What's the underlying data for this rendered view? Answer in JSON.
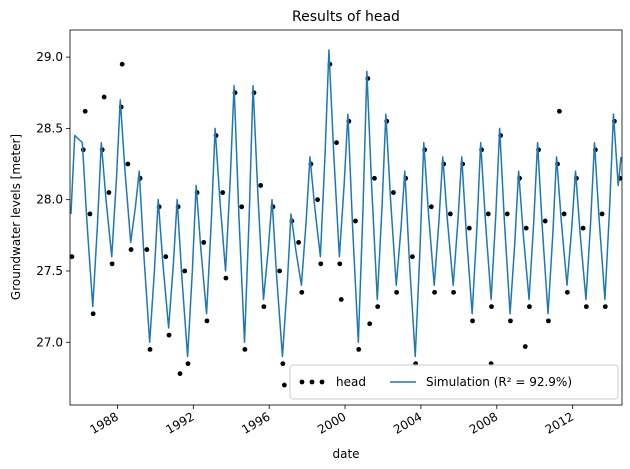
{
  "chart_data": {
    "type": "line",
    "title": "Results of head",
    "xlabel": "date",
    "ylabel": "Groundwater levels [meter]",
    "xlim": [
      1985.5,
      2014.6
    ],
    "xticks": [
      1988,
      1992,
      1996,
      2000,
      2004,
      2008,
      2012
    ],
    "ylim": [
      26.56,
      29.19
    ],
    "yticks": [
      {
        "value": 27,
        "label": "27.0"
      },
      27.5,
      {
        "value": 28,
        "label": "28.0"
      },
      28.5,
      {
        "value": 29,
        "label": "29.0"
      }
    ],
    "legend": "lower right",
    "series": [
      {
        "name": "head",
        "type": "scatter",
        "color": "#000000",
        "x": [
          1985.6,
          1986.2,
          1986.3,
          1986.55,
          1986.72,
          1987.2,
          1987.3,
          1987.55,
          1987.72,
          1988.2,
          1988.25,
          1988.55,
          1988.72,
          1989.2,
          1989.55,
          1989.72,
          1990.2,
          1990.55,
          1990.72,
          1991.2,
          1991.3,
          1991.55,
          1991.72,
          1992.2,
          1992.55,
          1992.72,
          1993.2,
          1993.55,
          1993.72,
          1994.2,
          1994.55,
          1994.72,
          1995.2,
          1995.55,
          1995.72,
          1996.2,
          1996.55,
          1996.72,
          1996.8,
          1997.2,
          1997.55,
          1997.72,
          1998.2,
          1998.55,
          1998.72,
          1999.2,
          1999.55,
          1999.72,
          1999.8,
          2000.2,
          2000.55,
          2000.72,
          2001.2,
          2001.3,
          2001.55,
          2001.72,
          2002.2,
          2002.55,
          2002.72,
          2003.2,
          2003.55,
          2003.72,
          2004.2,
          2004.55,
          2004.72,
          2005.2,
          2005.55,
          2005.72,
          2006.2,
          2006.55,
          2006.72,
          2007.2,
          2007.55,
          2007.7,
          2007.72,
          2008.2,
          2008.55,
          2008.72,
          2009.2,
          2009.5,
          2009.55,
          2009.72,
          2010.2,
          2010.55,
          2010.72,
          2011.2,
          2011.3,
          2011.55,
          2011.72,
          2012.2,
          2012.55,
          2012.72,
          2013.2,
          2013.55,
          2013.72,
          2014.2,
          2014.5
        ],
        "values": [
          27.6,
          28.35,
          28.62,
          27.9,
          27.2,
          28.35,
          28.72,
          28.05,
          27.55,
          28.65,
          28.95,
          28.25,
          27.65,
          28.15,
          27.65,
          26.95,
          27.95,
          27.6,
          27.05,
          27.95,
          26.78,
          27.5,
          26.85,
          28.05,
          27.7,
          27.15,
          28.45,
          28.05,
          27.45,
          28.75,
          27.95,
          26.95,
          28.75,
          28.1,
          27.25,
          27.95,
          27.5,
          26.85,
          26.7,
          27.85,
          27.7,
          27.35,
          28.25,
          28.0,
          27.55,
          28.95,
          28.4,
          27.55,
          27.3,
          28.55,
          27.85,
          26.95,
          28.85,
          27.13,
          28.15,
          27.25,
          28.55,
          28.05,
          27.35,
          28.15,
          27.6,
          26.85,
          28.35,
          27.95,
          27.35,
          28.25,
          27.9,
          27.35,
          28.25,
          27.8,
          27.15,
          28.35,
          27.9,
          26.85,
          27.25,
          28.45,
          27.9,
          27.15,
          28.15,
          26.97,
          27.8,
          27.25,
          28.35,
          27.85,
          27.15,
          28.25,
          28.62,
          27.9,
          27.35,
          28.15,
          27.8,
          27.25,
          28.35,
          27.9,
          27.25,
          28.55,
          28.15
        ]
      },
      {
        "name": "Simulation (R² = 92.9%)",
        "type": "line",
        "color": "#1f77b4",
        "x": [
          1985.55,
          1985.75,
          1986.15,
          1986.4,
          1986.7,
          1986.95,
          1987.15,
          1987.4,
          1987.7,
          1987.95,
          1988.15,
          1988.4,
          1988.7,
          1988.95,
          1989.15,
          1989.4,
          1989.7,
          1989.95,
          1990.15,
          1990.4,
          1990.7,
          1990.95,
          1991.15,
          1991.4,
          1991.7,
          1991.95,
          1992.15,
          1992.4,
          1992.7,
          1992.95,
          1993.15,
          1993.4,
          1993.7,
          1993.95,
          1994.15,
          1994.4,
          1994.7,
          1994.95,
          1995.15,
          1995.4,
          1995.7,
          1995.95,
          1996.15,
          1996.4,
          1996.7,
          1996.95,
          1997.15,
          1997.4,
          1997.7,
          1997.95,
          1998.15,
          1998.4,
          1998.7,
          1998.95,
          1999.15,
          1999.4,
          1999.7,
          1999.95,
          2000.15,
          2000.4,
          2000.7,
          2000.95,
          2001.15,
          2001.4,
          2001.7,
          2001.95,
          2002.15,
          2002.4,
          2002.7,
          2002.95,
          2003.15,
          2003.4,
          2003.7,
          2003.95,
          2004.15,
          2004.4,
          2004.7,
          2004.95,
          2005.15,
          2005.4,
          2005.7,
          2005.95,
          2006.15,
          2006.4,
          2006.7,
          2006.95,
          2007.15,
          2007.4,
          2007.7,
          2007.95,
          2008.15,
          2008.4,
          2008.7,
          2008.95,
          2009.15,
          2009.4,
          2009.7,
          2009.95,
          2010.15,
          2010.4,
          2010.7,
          2010.95,
          2011.15,
          2011.4,
          2011.7,
          2011.95,
          2012.15,
          2012.4,
          2012.7,
          2012.95,
          2013.15,
          2013.4,
          2013.7,
          2013.95,
          2014.15,
          2014.4,
          2014.55
        ],
        "values": [
          27.9,
          28.45,
          28.4,
          27.83,
          27.25,
          27.83,
          28.4,
          28.0,
          27.6,
          28.15,
          28.7,
          28.2,
          27.7,
          27.95,
          28.2,
          27.6,
          27.0,
          27.5,
          28.0,
          27.55,
          27.1,
          27.55,
          28.0,
          27.45,
          26.9,
          27.5,
          28.1,
          27.65,
          27.2,
          27.85,
          28.5,
          28.0,
          27.5,
          28.15,
          28.8,
          27.9,
          27.0,
          27.9,
          28.8,
          28.05,
          27.3,
          27.65,
          28.0,
          27.45,
          26.9,
          27.4,
          27.9,
          27.65,
          27.4,
          27.85,
          28.3,
          27.95,
          27.6,
          28.33,
          29.05,
          28.33,
          27.6,
          28.1,
          28.6,
          27.8,
          27.0,
          27.95,
          28.9,
          28.1,
          27.3,
          27.95,
          28.6,
          28.0,
          27.4,
          27.8,
          28.2,
          27.55,
          26.9,
          27.65,
          28.4,
          27.9,
          27.4,
          27.85,
          28.3,
          27.85,
          27.4,
          27.85,
          28.3,
          27.75,
          27.2,
          27.8,
          28.4,
          27.85,
          27.3,
          27.9,
          28.5,
          27.85,
          27.2,
          27.7,
          28.2,
          27.75,
          27.3,
          27.85,
          28.4,
          27.8,
          27.2,
          27.75,
          28.3,
          27.85,
          27.4,
          27.8,
          28.2,
          27.75,
          27.3,
          27.85,
          28.4,
          27.85,
          27.3,
          27.95,
          28.6,
          28.1,
          28.3
        ]
      }
    ]
  }
}
